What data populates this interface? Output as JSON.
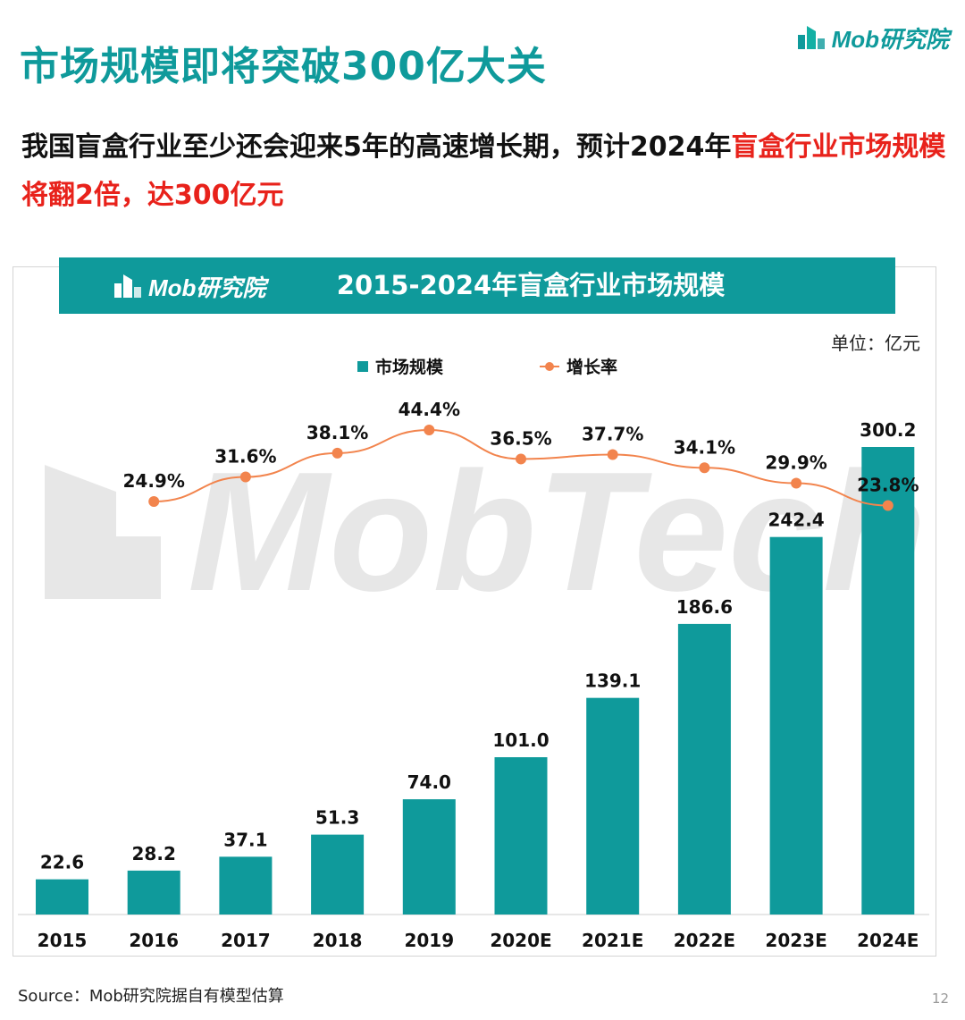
{
  "page": {
    "title": "市场规模即将突破300亿大关",
    "brand": "Mob研究院",
    "headline_part1": "我国盲盒行业至少还会迎来5年的高速增长期，预计2024年",
    "headline_highlight": "盲盒行业市场规模将翻2倍，达300亿元",
    "source": "Source：Mob研究院据自有模型估算",
    "page_number": "12",
    "watermark_text": "MobTech",
    "accent_color": "#0f9a9b",
    "highlight_color": "#e8221b",
    "line_color": "#f2844d"
  },
  "chart_data": {
    "type": "bar",
    "title": "2015-2024年盲盒行业市场规模",
    "unit_label": "单位：亿元",
    "categories": [
      "2015",
      "2016",
      "2017",
      "2018",
      "2019",
      "2020E",
      "2021E",
      "2022E",
      "2023E",
      "2024E"
    ],
    "series": [
      {
        "name": "市场规模",
        "type": "bar",
        "color": "#0f9a9b",
        "values": [
          22.6,
          28.2,
          37.1,
          51.3,
          74.0,
          101.0,
          139.1,
          186.6,
          242.4,
          300.2
        ],
        "labels": [
          "22.6",
          "28.2",
          "37.1",
          "51.3",
          "74.0",
          "101.0",
          "139.1",
          "186.6",
          "242.4",
          "300.2"
        ]
      },
      {
        "name": "增长率",
        "type": "line",
        "color": "#f2844d",
        "values": [
          null,
          24.9,
          31.6,
          38.1,
          44.4,
          36.5,
          37.7,
          34.1,
          29.9,
          23.8
        ],
        "labels": [
          null,
          "24.9%",
          "31.6%",
          "38.1%",
          "44.4%",
          "36.5%",
          "37.7%",
          "34.1%",
          "29.9%",
          "23.8%"
        ]
      }
    ],
    "legend_position": "top",
    "grid": false,
    "ylim": [
      0,
      300.2
    ]
  }
}
